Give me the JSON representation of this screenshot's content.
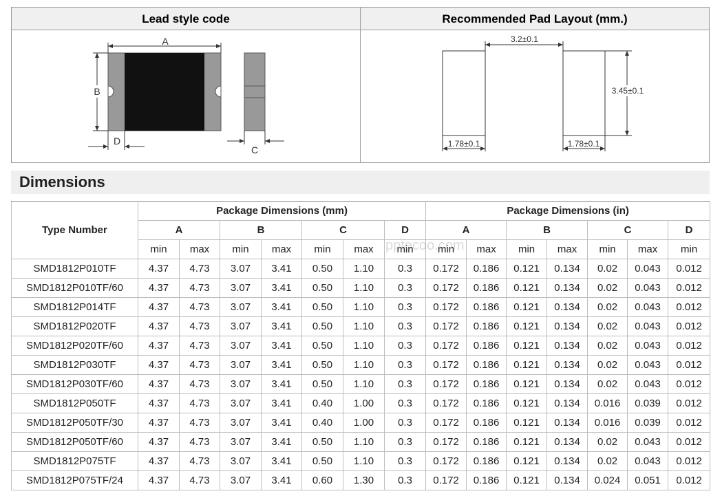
{
  "lead_style": {
    "title": "Lead style code",
    "label_a": "A",
    "label_b": "B",
    "label_c": "C",
    "label_d": "D"
  },
  "pad_layout": {
    "title": "Recommended Pad Layout (mm.)",
    "gap": "3.2±0.1",
    "height": "3.45±0.1",
    "width_left": "1.78±0.1",
    "width_right": "1.78±0.1"
  },
  "section_title": "Dimensions",
  "watermark": "pptecoo.com",
  "table": {
    "type_header": "Type Number",
    "groups": [
      {
        "label": "Package Dimensions (mm)",
        "dims": [
          "A",
          "B",
          "C",
          "D"
        ]
      },
      {
        "label": "Package Dimensions (in)",
        "dims": [
          "A",
          "B",
          "C",
          "D"
        ]
      }
    ],
    "subheaders": [
      "min",
      "max",
      "min",
      "max",
      "min",
      "max",
      "min",
      "min",
      "max",
      "min",
      "max",
      "min",
      "max",
      "min"
    ],
    "rows": [
      [
        "SMD1812P010TF",
        "4.37",
        "4.73",
        "3.07",
        "3.41",
        "0.50",
        "1.10",
        "0.3",
        "0.172",
        "0.186",
        "0.121",
        "0.134",
        "0.02",
        "0.043",
        "0.012"
      ],
      [
        "SMD1812P010TF/60",
        "4.37",
        "4.73",
        "3.07",
        "3.41",
        "0.50",
        "1.10",
        "0.3",
        "0.172",
        "0.186",
        "0.121",
        "0.134",
        "0.02",
        "0.043",
        "0.012"
      ],
      [
        "SMD1812P014TF",
        "4.37",
        "4.73",
        "3.07",
        "3.41",
        "0.50",
        "1.10",
        "0.3",
        "0.172",
        "0.186",
        "0.121",
        "0.134",
        "0.02",
        "0.043",
        "0.012"
      ],
      [
        "SMD1812P020TF",
        "4.37",
        "4.73",
        "3.07",
        "3.41",
        "0.50",
        "1.10",
        "0.3",
        "0.172",
        "0.186",
        "0.121",
        "0.134",
        "0.02",
        "0.043",
        "0.012"
      ],
      [
        "SMD1812P020TF/60",
        "4.37",
        "4.73",
        "3.07",
        "3.41",
        "0.50",
        "1.10",
        "0.3",
        "0.172",
        "0.186",
        "0.121",
        "0.134",
        "0.02",
        "0.043",
        "0.012"
      ],
      [
        "SMD1812P030TF",
        "4.37",
        "4.73",
        "3.07",
        "3.41",
        "0.50",
        "1.10",
        "0.3",
        "0.172",
        "0.186",
        "0.121",
        "0.134",
        "0.02",
        "0.043",
        "0.012"
      ],
      [
        "SMD1812P030TF/60",
        "4.37",
        "4.73",
        "3.07",
        "3.41",
        "0.50",
        "1.10",
        "0.3",
        "0.172",
        "0.186",
        "0.121",
        "0.134",
        "0.02",
        "0.043",
        "0.012"
      ],
      [
        "SMD1812P050TF",
        "4.37",
        "4.73",
        "3.07",
        "3.41",
        "0.40",
        "1.00",
        "0.3",
        "0.172",
        "0.186",
        "0.121",
        "0.134",
        "0.016",
        "0.039",
        "0.012"
      ],
      [
        "SMD1812P050TF/30",
        "4.37",
        "4.73",
        "3.07",
        "3.41",
        "0.40",
        "1.00",
        "0.3",
        "0.172",
        "0.186",
        "0.121",
        "0.134",
        "0.016",
        "0.039",
        "0.012"
      ],
      [
        "SMD1812P050TF/60",
        "4.37",
        "4.73",
        "3.07",
        "3.41",
        "0.50",
        "1.10",
        "0.3",
        "0.172",
        "0.186",
        "0.121",
        "0.134",
        "0.02",
        "0.043",
        "0.012"
      ],
      [
        "SMD1812P075TF",
        "4.37",
        "4.73",
        "3.07",
        "3.41",
        "0.50",
        "1.10",
        "0.3",
        "0.172",
        "0.186",
        "0.121",
        "0.134",
        "0.02",
        "0.043",
        "0.012"
      ],
      [
        "SMD1812P075TF/24",
        "4.37",
        "4.73",
        "3.07",
        "3.41",
        "0.60",
        "1.30",
        "0.3",
        "0.172",
        "0.186",
        "0.121",
        "0.134",
        "0.024",
        "0.051",
        "0.012"
      ]
    ]
  }
}
